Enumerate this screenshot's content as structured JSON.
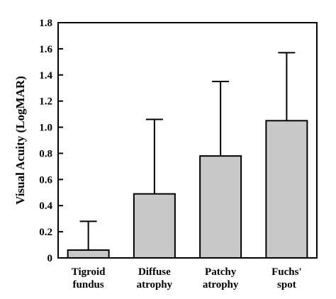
{
  "chart_data": {
    "type": "bar",
    "categories": [
      [
        "Tigroid",
        "fundus"
      ],
      [
        "Diffuse",
        "atrophy"
      ],
      [
        "Patchy",
        "atrophy"
      ],
      [
        "Fuchs'",
        "spot"
      ]
    ],
    "values": [
      0.06,
      0.49,
      0.78,
      1.05
    ],
    "error_upper": [
      0.28,
      1.06,
      1.35,
      1.57
    ],
    "title": "",
    "xlabel": "",
    "ylabel": "Visual Acuity (LogMAR)",
    "ylim": [
      0,
      1.8
    ],
    "yticks": [
      "0",
      "0.2",
      "0.4",
      "0.6",
      "0.8",
      "1.0",
      "1.2",
      "1.4",
      "1.6",
      "1.8"
    ],
    "grid": false,
    "legend": "none",
    "bar_color": "#c8c8c8",
    "bar_edge_color": "#000000"
  }
}
